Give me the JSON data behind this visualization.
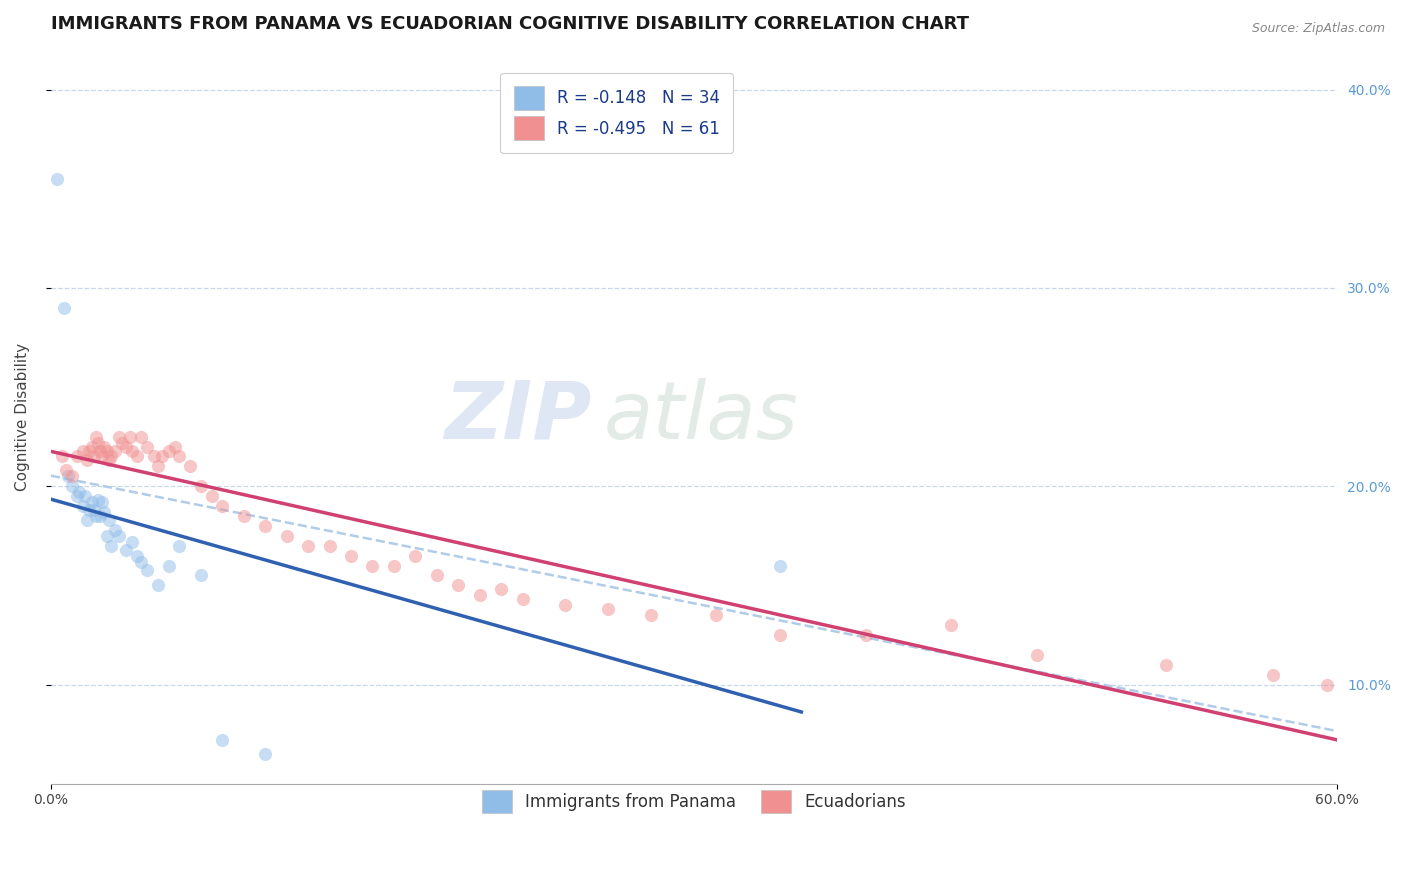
{
  "title": "IMMIGRANTS FROM PANAMA VS ECUADORIAN COGNITIVE DISABILITY CORRELATION CHART",
  "source": "Source: ZipAtlas.com",
  "ylabel": "Cognitive Disability",
  "xlim": [
    0.0,
    0.6
  ],
  "ylim": [
    0.05,
    0.42
  ],
  "yticks": [
    0.1,
    0.2,
    0.3,
    0.4
  ],
  "ytick_labels": [
    "10.0%",
    "20.0%",
    "30.0%",
    "40.0%"
  ],
  "legend_R1": "R = -0.148",
  "legend_N1": "N = 34",
  "legend_R2": "R = -0.495",
  "legend_N2": "N = 61",
  "watermark_zip": "ZIP",
  "watermark_atlas": "atlas",
  "blue_scatter_x": [
    0.003,
    0.006,
    0.008,
    0.01,
    0.012,
    0.013,
    0.015,
    0.016,
    0.017,
    0.018,
    0.019,
    0.02,
    0.021,
    0.022,
    0.023,
    0.024,
    0.025,
    0.026,
    0.027,
    0.028,
    0.03,
    0.032,
    0.035,
    0.038,
    0.04,
    0.042,
    0.045,
    0.05,
    0.055,
    0.06,
    0.07,
    0.08,
    0.1,
    0.34
  ],
  "blue_scatter_y": [
    0.355,
    0.29,
    0.205,
    0.2,
    0.195,
    0.197,
    0.19,
    0.195,
    0.183,
    0.188,
    0.192,
    0.188,
    0.185,
    0.193,
    0.185,
    0.192,
    0.187,
    0.175,
    0.183,
    0.17,
    0.178,
    0.175,
    0.168,
    0.172,
    0.165,
    0.162,
    0.158,
    0.15,
    0.16,
    0.17,
    0.155,
    0.072,
    0.065,
    0.16
  ],
  "pink_scatter_x": [
    0.005,
    0.007,
    0.01,
    0.012,
    0.015,
    0.017,
    0.018,
    0.019,
    0.02,
    0.021,
    0.022,
    0.023,
    0.024,
    0.025,
    0.026,
    0.027,
    0.028,
    0.03,
    0.032,
    0.033,
    0.035,
    0.037,
    0.038,
    0.04,
    0.042,
    0.045,
    0.048,
    0.05,
    0.052,
    0.055,
    0.058,
    0.06,
    0.065,
    0.07,
    0.075,
    0.08,
    0.09,
    0.1,
    0.11,
    0.12,
    0.13,
    0.14,
    0.15,
    0.16,
    0.17,
    0.18,
    0.19,
    0.2,
    0.21,
    0.22,
    0.24,
    0.26,
    0.28,
    0.31,
    0.34,
    0.38,
    0.42,
    0.46,
    0.52,
    0.57,
    0.595
  ],
  "pink_scatter_y": [
    0.215,
    0.208,
    0.205,
    0.215,
    0.218,
    0.213,
    0.218,
    0.22,
    0.215,
    0.225,
    0.222,
    0.218,
    0.215,
    0.22,
    0.218,
    0.213,
    0.215,
    0.218,
    0.225,
    0.222,
    0.22,
    0.225,
    0.218,
    0.215,
    0.225,
    0.22,
    0.215,
    0.21,
    0.215,
    0.218,
    0.22,
    0.215,
    0.21,
    0.2,
    0.195,
    0.19,
    0.185,
    0.18,
    0.175,
    0.17,
    0.17,
    0.165,
    0.16,
    0.16,
    0.165,
    0.155,
    0.15,
    0.145,
    0.148,
    0.143,
    0.14,
    0.138,
    0.135,
    0.135,
    0.125,
    0.125,
    0.13,
    0.115,
    0.11,
    0.105,
    0.1
  ],
  "blue_color": "#90bce8",
  "pink_color": "#f09090",
  "blue_line_color": "#3060b0",
  "pink_line_color": "#d04070",
  "dashed_line_color": "#b0cce8",
  "scatter_alpha": 0.5,
  "scatter_size": 90,
  "background_color": "#ffffff",
  "title_color": "#1a1a1a",
  "axis_label_color": "#444444",
  "tick_label_color_right": "#5b9bd5",
  "grid_color": "#c8d8ec",
  "title_fontsize": 13,
  "axis_label_fontsize": 11,
  "tick_fontsize": 10,
  "legend_fontsize": 12
}
